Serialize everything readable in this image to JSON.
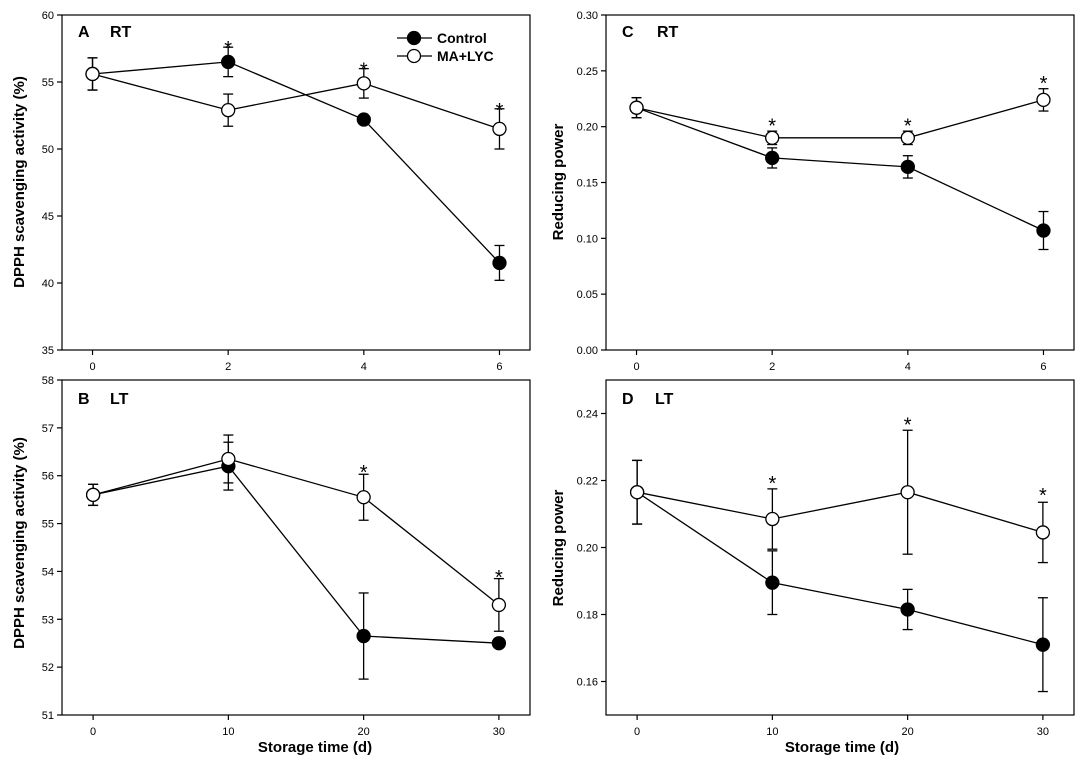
{
  "legend": {
    "control_label": "Control",
    "treatment_label": "MA+LYC",
    "placement": "top-right of panel A"
  },
  "colors": {
    "control": "#000000",
    "treatment": "#ffffff",
    "axis": "#000000"
  },
  "chart_data": [
    {
      "panel": "A",
      "condition": "RT",
      "type": "line",
      "ylabel": "DPPH scavenging activity (%)",
      "xlabel": "",
      "x": [
        0,
        2,
        4,
        6
      ],
      "xticks": [
        "0",
        "2",
        "4",
        "6"
      ],
      "xlim": [
        -0.45,
        6.45
      ],
      "ylim": [
        35,
        60
      ],
      "yticks": [
        35,
        40,
        45,
        50,
        55,
        60
      ],
      "yticklabels": [
        "35",
        "40",
        "45",
        "50",
        "55",
        "60"
      ],
      "series": [
        {
          "name": "Control",
          "values": [
            55.6,
            56.5,
            52.2,
            41.5
          ],
          "errors": [
            1.2,
            1.1,
            0.3,
            1.3
          ]
        },
        {
          "name": "MA+LYC",
          "values": [
            55.6,
            52.9,
            54.9,
            51.5
          ],
          "errors": [
            1.2,
            1.2,
            1.1,
            1.5
          ]
        }
      ],
      "annotations": [
        {
          "x": 2,
          "y": 57.6,
          "text": "*"
        },
        {
          "x": 4,
          "y": 56.0,
          "text": "*"
        },
        {
          "x": 6,
          "y": 53.0,
          "text": "*"
        }
      ]
    },
    {
      "panel": "B",
      "condition": "LT",
      "type": "line",
      "ylabel": "DPPH scavenging activity (%)",
      "xlabel": "Storage time (d)",
      "x": [
        0,
        10,
        20,
        30
      ],
      "xticks": [
        "0",
        "10",
        "20",
        "30"
      ],
      "xlim": [
        -2.3,
        32.3
      ],
      "ylim": [
        51,
        58
      ],
      "yticks": [
        51,
        52,
        53,
        54,
        55,
        56,
        57,
        58
      ],
      "yticklabels": [
        "51",
        "52",
        "53",
        "54",
        "55",
        "56",
        "57",
        "58"
      ],
      "series": [
        {
          "name": "Control",
          "values": [
            55.6,
            56.2,
            52.65,
            52.5
          ],
          "errors": [
            0.22,
            0.5,
            0.9,
            0.07
          ]
        },
        {
          "name": "MA+LYC",
          "values": [
            55.6,
            56.35,
            55.55,
            53.3
          ],
          "errors": [
            0.22,
            0.5,
            0.48,
            0.55
          ]
        }
      ],
      "annotations": [
        {
          "x": 20,
          "y": 56.1,
          "text": "*"
        },
        {
          "x": 30,
          "y": 53.9,
          "text": "*"
        }
      ]
    },
    {
      "panel": "C",
      "condition": "RT",
      "type": "line",
      "ylabel": "Reducing power",
      "xlabel": "",
      "x": [
        0,
        2,
        4,
        6
      ],
      "xticks": [
        "0",
        "2",
        "4",
        "6"
      ],
      "xlim": [
        -0.45,
        6.45
      ],
      "ylim": [
        0.0,
        0.3
      ],
      "yticks": [
        0.0,
        0.05,
        0.1,
        0.15,
        0.2,
        0.25,
        0.3
      ],
      "yticklabels": [
        "0.00",
        "0.05",
        "0.10",
        "0.15",
        "0.20",
        "0.25",
        "0.30"
      ],
      "series": [
        {
          "name": "Control",
          "values": [
            0.217,
            0.172,
            0.164,
            0.107
          ],
          "errors": [
            0.009,
            0.009,
            0.01,
            0.017
          ]
        },
        {
          "name": "MA+LYC",
          "values": [
            0.217,
            0.19,
            0.19,
            0.224
          ],
          "errors": [
            0.009,
            0.006,
            0.006,
            0.01
          ]
        }
      ],
      "annotations": [
        {
          "x": 2,
          "y": 0.202,
          "text": "*"
        },
        {
          "x": 4,
          "y": 0.202,
          "text": "*"
        },
        {
          "x": 6,
          "y": 0.24,
          "text": "*"
        }
      ]
    },
    {
      "panel": "D",
      "condition": "LT",
      "type": "line",
      "ylabel": "Reducing power",
      "xlabel": "Storage time (d)",
      "x": [
        0,
        10,
        20,
        30
      ],
      "xticks": [
        "0",
        "10",
        "20",
        "30"
      ],
      "xlim": [
        -2.3,
        32.3
      ],
      "ylim": [
        0.15,
        0.25
      ],
      "yticks": [
        0.16,
        0.18,
        0.2,
        0.22,
        0.24
      ],
      "yticklabels": [
        "0.16",
        "0.18",
        "0.20",
        "0.22",
        "0.24"
      ],
      "series": [
        {
          "name": "Control",
          "values": [
            0.2165,
            0.1895,
            0.1815,
            0.171
          ],
          "errors": [
            0.0095,
            0.0095,
            0.006,
            0.014
          ]
        },
        {
          "name": "MA+LYC",
          "values": [
            0.2165,
            0.2085,
            0.2165,
            0.2045
          ],
          "errors": [
            0.0095,
            0.009,
            0.0185,
            0.009
          ]
        }
      ],
      "annotations": [
        {
          "x": 10,
          "y": 0.2195,
          "text": "*"
        },
        {
          "x": 20,
          "y": 0.237,
          "text": "*"
        },
        {
          "x": 30,
          "y": 0.216,
          "text": "*"
        }
      ]
    }
  ]
}
